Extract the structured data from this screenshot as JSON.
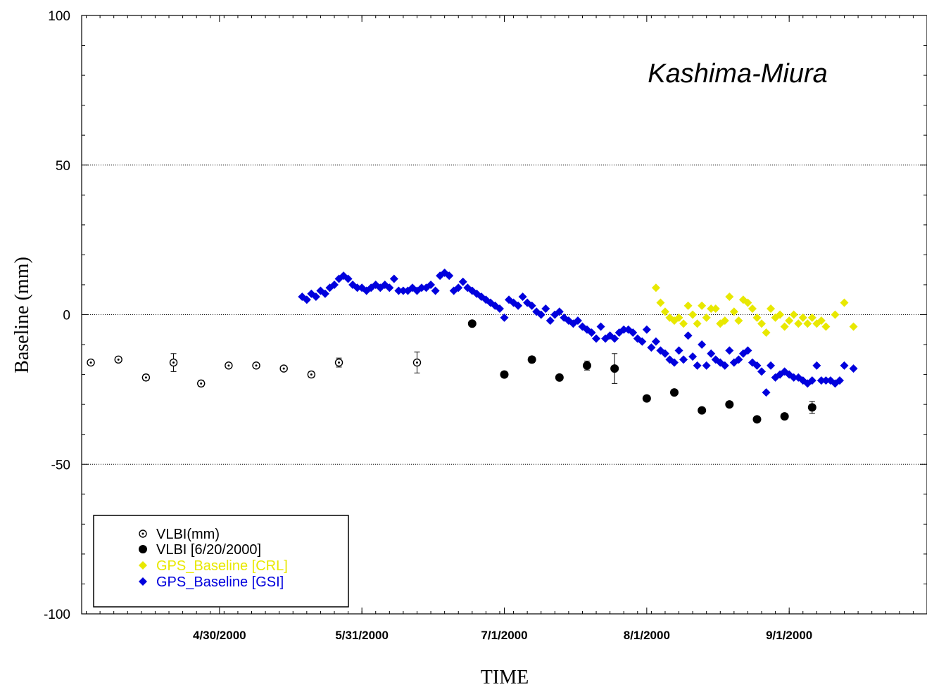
{
  "chart_data": {
    "type": "scatter",
    "title": "Kashima-Miura",
    "xlabel": "TIME",
    "ylabel": "Baseline (mm)",
    "ylim": [
      -100,
      100
    ],
    "xlim": [
      "2000-03-31",
      "2000-10-01"
    ],
    "grid": {
      "horizontal_dotted_at": [
        50,
        0,
        -50
      ]
    },
    "y_ticks": [
      "100",
      "50",
      "0",
      "-50",
      "-100"
    ],
    "x_ticks": [
      "4/30/2000",
      "5/31/2000",
      "7/1/2000",
      "8/1/2000",
      "9/1/2000"
    ],
    "x_tick_dates": [
      "2000-04-30",
      "2000-05-31",
      "2000-07-01",
      "2000-08-01",
      "2000-09-01"
    ],
    "legend_position": "bottom-left",
    "series": [
      {
        "name": "VLBI(mm)",
        "color": "#000000",
        "marker": "open-circle",
        "points": [
          {
            "x": "2000-04-02",
            "y": -16,
            "err": 0.8
          },
          {
            "x": "2000-04-08",
            "y": -15,
            "err": 0.8
          },
          {
            "x": "2000-04-14",
            "y": -21,
            "err": 1
          },
          {
            "x": "2000-04-20",
            "y": -16,
            "err": 3
          },
          {
            "x": "2000-04-26",
            "y": -23,
            "err": 1
          },
          {
            "x": "2000-05-02",
            "y": -17,
            "err": 0.8
          },
          {
            "x": "2000-05-08",
            "y": -17,
            "err": 0.8
          },
          {
            "x": "2000-05-14",
            "y": -18,
            "err": 0.8
          },
          {
            "x": "2000-05-20",
            "y": -20,
            "err": 1
          },
          {
            "x": "2000-05-26",
            "y": -16,
            "err": 1.5
          },
          {
            "x": "2000-06-12",
            "y": -16,
            "err": 3.5
          }
        ]
      },
      {
        "name": "VLBI [6/20/2000]",
        "color": "#000000",
        "marker": "filled-circle",
        "points": [
          {
            "x": "2000-06-24",
            "y": -3,
            "err": 1
          },
          {
            "x": "2000-07-01",
            "y": -20,
            "err": 1
          },
          {
            "x": "2000-07-07",
            "y": -15,
            "err": 1
          },
          {
            "x": "2000-07-13",
            "y": -21,
            "err": 1
          },
          {
            "x": "2000-07-19",
            "y": -17,
            "err": 1.5
          },
          {
            "x": "2000-07-25",
            "y": -18,
            "err": 5
          },
          {
            "x": "2000-08-01",
            "y": -28,
            "err": 0.8
          },
          {
            "x": "2000-08-07",
            "y": -26,
            "err": 1
          },
          {
            "x": "2000-08-13",
            "y": -32,
            "err": 0.8
          },
          {
            "x": "2000-08-19",
            "y": -30,
            "err": 0.8
          },
          {
            "x": "2000-08-25",
            "y": -35,
            "err": 0.8
          },
          {
            "x": "2000-08-31",
            "y": -34,
            "err": 0.8
          },
          {
            "x": "2000-09-06",
            "y": -31,
            "err": 2
          }
        ]
      },
      {
        "name": "GPS_Baseline [CRL]",
        "color": "#e8e800",
        "marker": "diamond",
        "points": [
          {
            "x": "2000-08-03",
            "y": 9
          },
          {
            "x": "2000-08-04",
            "y": 4
          },
          {
            "x": "2000-08-05",
            "y": 1
          },
          {
            "x": "2000-08-06",
            "y": -1
          },
          {
            "x": "2000-08-07",
            "y": -2
          },
          {
            "x": "2000-08-08",
            "y": -1
          },
          {
            "x": "2000-08-09",
            "y": -3
          },
          {
            "x": "2000-08-10",
            "y": 3
          },
          {
            "x": "2000-08-11",
            "y": 0
          },
          {
            "x": "2000-08-12",
            "y": -3
          },
          {
            "x": "2000-08-13",
            "y": 3
          },
          {
            "x": "2000-08-14",
            "y": -1
          },
          {
            "x": "2000-08-15",
            "y": 2
          },
          {
            "x": "2000-08-16",
            "y": 2
          },
          {
            "x": "2000-08-17",
            "y": -3
          },
          {
            "x": "2000-08-18",
            "y": -2
          },
          {
            "x": "2000-08-19",
            "y": 6
          },
          {
            "x": "2000-08-20",
            "y": 1
          },
          {
            "x": "2000-08-21",
            "y": -2
          },
          {
            "x": "2000-08-22",
            "y": 5
          },
          {
            "x": "2000-08-23",
            "y": 4
          },
          {
            "x": "2000-08-24",
            "y": 2
          },
          {
            "x": "2000-08-25",
            "y": -1
          },
          {
            "x": "2000-08-26",
            "y": -3
          },
          {
            "x": "2000-08-27",
            "y": -6
          },
          {
            "x": "2000-08-28",
            "y": 2
          },
          {
            "x": "2000-08-29",
            "y": -1
          },
          {
            "x": "2000-08-30",
            "y": 0
          },
          {
            "x": "2000-08-31",
            "y": -4
          },
          {
            "x": "2000-09-01",
            "y": -2
          },
          {
            "x": "2000-09-02",
            "y": 0
          },
          {
            "x": "2000-09-03",
            "y": -3
          },
          {
            "x": "2000-09-04",
            "y": -1
          },
          {
            "x": "2000-09-05",
            "y": -3
          },
          {
            "x": "2000-09-06",
            "y": -1
          },
          {
            "x": "2000-09-07",
            "y": -3
          },
          {
            "x": "2000-09-08",
            "y": -2
          },
          {
            "x": "2000-09-09",
            "y": -4
          },
          {
            "x": "2000-09-11",
            "y": 0
          },
          {
            "x": "2000-09-13",
            "y": 4
          },
          {
            "x": "2000-09-15",
            "y": -4
          }
        ]
      },
      {
        "name": "GPS_Baseline [GSI]",
        "color": "#0000dd",
        "marker": "diamond",
        "points": [
          {
            "x": "2000-05-18",
            "y": 6
          },
          {
            "x": "2000-05-19",
            "y": 5
          },
          {
            "x": "2000-05-20",
            "y": 7
          },
          {
            "x": "2000-05-21",
            "y": 6
          },
          {
            "x": "2000-05-22",
            "y": 8
          },
          {
            "x": "2000-05-23",
            "y": 7
          },
          {
            "x": "2000-05-24",
            "y": 9
          },
          {
            "x": "2000-05-25",
            "y": 10
          },
          {
            "x": "2000-05-26",
            "y": 12
          },
          {
            "x": "2000-05-27",
            "y": 13
          },
          {
            "x": "2000-05-28",
            "y": 12
          },
          {
            "x": "2000-05-29",
            "y": 10
          },
          {
            "x": "2000-05-30",
            "y": 9
          },
          {
            "x": "2000-05-31",
            "y": 9
          },
          {
            "x": "2000-06-01",
            "y": 8
          },
          {
            "x": "2000-06-02",
            "y": 9
          },
          {
            "x": "2000-06-03",
            "y": 10
          },
          {
            "x": "2000-06-04",
            "y": 9
          },
          {
            "x": "2000-06-05",
            "y": 10
          },
          {
            "x": "2000-06-06",
            "y": 9
          },
          {
            "x": "2000-06-07",
            "y": 12
          },
          {
            "x": "2000-06-08",
            "y": 8
          },
          {
            "x": "2000-06-09",
            "y": 8
          },
          {
            "x": "2000-06-10",
            "y": 8
          },
          {
            "x": "2000-06-11",
            "y": 9
          },
          {
            "x": "2000-06-12",
            "y": 8
          },
          {
            "x": "2000-06-13",
            "y": 9
          },
          {
            "x": "2000-06-14",
            "y": 9
          },
          {
            "x": "2000-06-15",
            "y": 10
          },
          {
            "x": "2000-06-16",
            "y": 8
          },
          {
            "x": "2000-06-17",
            "y": 13
          },
          {
            "x": "2000-06-18",
            "y": 14
          },
          {
            "x": "2000-06-19",
            "y": 13
          },
          {
            "x": "2000-06-20",
            "y": 8
          },
          {
            "x": "2000-06-21",
            "y": 9
          },
          {
            "x": "2000-06-22",
            "y": 11
          },
          {
            "x": "2000-06-23",
            "y": 9
          },
          {
            "x": "2000-06-24",
            "y": 8
          },
          {
            "x": "2000-06-25",
            "y": 7
          },
          {
            "x": "2000-06-26",
            "y": 6
          },
          {
            "x": "2000-06-27",
            "y": 5
          },
          {
            "x": "2000-06-28",
            "y": 4
          },
          {
            "x": "2000-06-29",
            "y": 3
          },
          {
            "x": "2000-06-30",
            "y": 2
          },
          {
            "x": "2000-07-01",
            "y": -1
          },
          {
            "x": "2000-07-02",
            "y": 5
          },
          {
            "x": "2000-07-03",
            "y": 4
          },
          {
            "x": "2000-07-04",
            "y": 3
          },
          {
            "x": "2000-07-05",
            "y": 6
          },
          {
            "x": "2000-07-06",
            "y": 4
          },
          {
            "x": "2000-07-07",
            "y": 3
          },
          {
            "x": "2000-07-08",
            "y": 1
          },
          {
            "x": "2000-07-09",
            "y": 0
          },
          {
            "x": "2000-07-10",
            "y": 2
          },
          {
            "x": "2000-07-11",
            "y": -2
          },
          {
            "x": "2000-07-12",
            "y": 0
          },
          {
            "x": "2000-07-13",
            "y": 1
          },
          {
            "x": "2000-07-14",
            "y": -1
          },
          {
            "x": "2000-07-15",
            "y": -2
          },
          {
            "x": "2000-07-16",
            "y": -3
          },
          {
            "x": "2000-07-17",
            "y": -2
          },
          {
            "x": "2000-07-18",
            "y": -4
          },
          {
            "x": "2000-07-19",
            "y": -5
          },
          {
            "x": "2000-07-20",
            "y": -6
          },
          {
            "x": "2000-07-21",
            "y": -8
          },
          {
            "x": "2000-07-22",
            "y": -4
          },
          {
            "x": "2000-07-23",
            "y": -8
          },
          {
            "x": "2000-07-24",
            "y": -7
          },
          {
            "x": "2000-07-25",
            "y": -8
          },
          {
            "x": "2000-07-26",
            "y": -6
          },
          {
            "x": "2000-07-27",
            "y": -5
          },
          {
            "x": "2000-07-28",
            "y": -5
          },
          {
            "x": "2000-07-29",
            "y": -6
          },
          {
            "x": "2000-07-30",
            "y": -8
          },
          {
            "x": "2000-07-31",
            "y": -9
          },
          {
            "x": "2000-08-01",
            "y": -5
          },
          {
            "x": "2000-08-02",
            "y": -11
          },
          {
            "x": "2000-08-03",
            "y": -9
          },
          {
            "x": "2000-08-04",
            "y": -12
          },
          {
            "x": "2000-08-05",
            "y": -13
          },
          {
            "x": "2000-08-06",
            "y": -15
          },
          {
            "x": "2000-08-07",
            "y": -16
          },
          {
            "x": "2000-08-08",
            "y": -12
          },
          {
            "x": "2000-08-09",
            "y": -15
          },
          {
            "x": "2000-08-10",
            "y": -7
          },
          {
            "x": "2000-08-11",
            "y": -14
          },
          {
            "x": "2000-08-12",
            "y": -17
          },
          {
            "x": "2000-08-13",
            "y": -10
          },
          {
            "x": "2000-08-14",
            "y": -17
          },
          {
            "x": "2000-08-15",
            "y": -13
          },
          {
            "x": "2000-08-16",
            "y": -15
          },
          {
            "x": "2000-08-17",
            "y": -16
          },
          {
            "x": "2000-08-18",
            "y": -17
          },
          {
            "x": "2000-08-19",
            "y": -12
          },
          {
            "x": "2000-08-20",
            "y": -16
          },
          {
            "x": "2000-08-21",
            "y": -15
          },
          {
            "x": "2000-08-22",
            "y": -13
          },
          {
            "x": "2000-08-23",
            "y": -12
          },
          {
            "x": "2000-08-24",
            "y": -16
          },
          {
            "x": "2000-08-25",
            "y": -17
          },
          {
            "x": "2000-08-26",
            "y": -19
          },
          {
            "x": "2000-08-27",
            "y": -26
          },
          {
            "x": "2000-08-28",
            "y": -17
          },
          {
            "x": "2000-08-29",
            "y": -21
          },
          {
            "x": "2000-08-30",
            "y": -20
          },
          {
            "x": "2000-08-31",
            "y": -19
          },
          {
            "x": "2000-09-01",
            "y": -20
          },
          {
            "x": "2000-09-02",
            "y": -21
          },
          {
            "x": "2000-09-03",
            "y": -21
          },
          {
            "x": "2000-09-04",
            "y": -22
          },
          {
            "x": "2000-09-05",
            "y": -23
          },
          {
            "x": "2000-09-06",
            "y": -22
          },
          {
            "x": "2000-09-07",
            "y": -17
          },
          {
            "x": "2000-09-08",
            "y": -22
          },
          {
            "x": "2000-09-09",
            "y": -22
          },
          {
            "x": "2000-09-10",
            "y": -22
          },
          {
            "x": "2000-09-11",
            "y": -23
          },
          {
            "x": "2000-09-12",
            "y": -22
          },
          {
            "x": "2000-09-13",
            "y": -17
          },
          {
            "x": "2000-09-15",
            "y": -18
          }
        ]
      }
    ]
  }
}
